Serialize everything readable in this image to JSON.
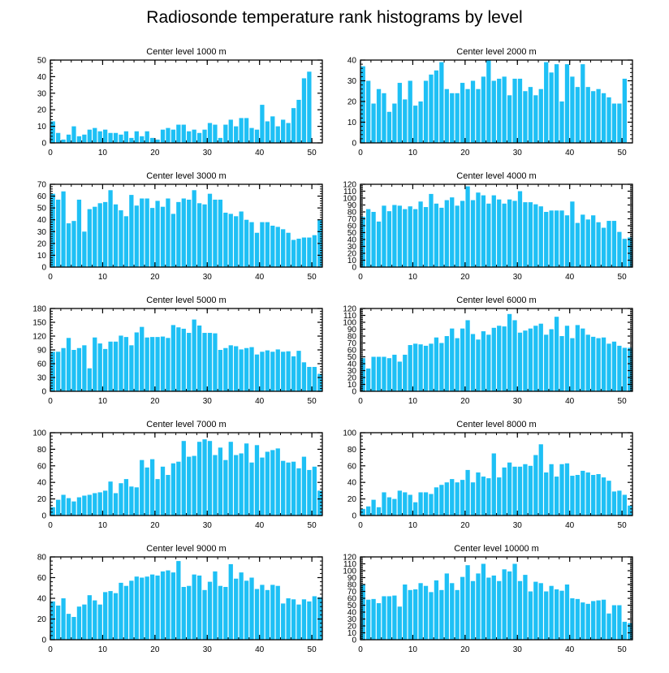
{
  "figure": {
    "title": "Radiosonde temperature rank histograms by level",
    "bar_color": "#1ec0f5",
    "axis_color": "#000000"
  },
  "chart_data": [
    {
      "type": "bar",
      "title": "Center level 1000 m",
      "xlabel": "",
      "ylabel": "",
      "xlim": [
        0,
        52
      ],
      "ylim": [
        0,
        50
      ],
      "xticks": [
        0,
        10,
        20,
        30,
        40,
        50
      ],
      "yticks": [
        0,
        10,
        20,
        30,
        40,
        50
      ],
      "categories": [
        0,
        1,
        2,
        3,
        4,
        5,
        6,
        7,
        8,
        9,
        10,
        11,
        12,
        13,
        14,
        15,
        16,
        17,
        18,
        19,
        20,
        21,
        22,
        23,
        24,
        25,
        26,
        27,
        28,
        29,
        30,
        31,
        32,
        33,
        34,
        35,
        36,
        37,
        38,
        39,
        40,
        41,
        42,
        43,
        44,
        45,
        46,
        47,
        48,
        49,
        50,
        51
      ],
      "values": [
        13,
        6,
        2,
        5,
        10,
        4,
        5,
        8,
        9,
        7,
        8,
        6,
        6,
        5,
        7,
        3,
        7,
        4,
        7,
        3,
        2,
        8,
        9,
        8,
        11,
        11,
        7,
        8,
        6,
        8,
        12,
        11,
        3,
        11,
        14,
        10,
        15,
        15,
        9,
        8,
        23,
        13,
        16,
        10,
        14,
        12,
        21,
        26,
        39,
        43,
        0,
        0
      ]
    },
    {
      "type": "bar",
      "title": "Center level 2000 m",
      "xlabel": "",
      "ylabel": "",
      "xlim": [
        0,
        52
      ],
      "ylim": [
        0,
        40
      ],
      "xticks": [
        0,
        10,
        20,
        30,
        40,
        50
      ],
      "yticks": [
        0,
        10,
        20,
        30,
        40
      ],
      "categories": [
        0,
        1,
        2,
        3,
        4,
        5,
        6,
        7,
        8,
        9,
        10,
        11,
        12,
        13,
        14,
        15,
        16,
        17,
        18,
        19,
        20,
        21,
        22,
        23,
        24,
        25,
        26,
        27,
        28,
        29,
        30,
        31,
        32,
        33,
        34,
        35,
        36,
        37,
        38,
        39,
        40,
        41,
        42,
        43,
        44,
        45,
        46,
        47,
        48,
        49,
        50,
        51
      ],
      "values": [
        37,
        30,
        19,
        26,
        24,
        15,
        19,
        29,
        21,
        30,
        18,
        20,
        30,
        33,
        35,
        39,
        26,
        24,
        24,
        29,
        26,
        30,
        26,
        32,
        40,
        30,
        31,
        32,
        23,
        31,
        31,
        25,
        27,
        23,
        26,
        39,
        34,
        38,
        20,
        38,
        32,
        27,
        38,
        27,
        25,
        26,
        24,
        22,
        19,
        19,
        31,
        0
      ]
    },
    {
      "type": "bar",
      "title": "Center level 3000 m",
      "xlabel": "",
      "ylabel": "",
      "xlim": [
        0,
        52
      ],
      "ylim": [
        0,
        70
      ],
      "xticks": [
        0,
        10,
        20,
        30,
        40,
        50
      ],
      "yticks": [
        0,
        10,
        20,
        30,
        40,
        50,
        60,
        70
      ],
      "categories": [
        0,
        1,
        2,
        3,
        4,
        5,
        6,
        7,
        8,
        9,
        10,
        11,
        12,
        13,
        14,
        15,
        16,
        17,
        18,
        19,
        20,
        21,
        22,
        23,
        24,
        25,
        26,
        27,
        28,
        29,
        30,
        31,
        32,
        33,
        34,
        35,
        36,
        37,
        38,
        39,
        40,
        41,
        42,
        43,
        44,
        45,
        46,
        47,
        48,
        49,
        50,
        51
      ],
      "values": [
        62,
        57,
        64,
        37,
        39,
        57,
        30,
        49,
        51,
        54,
        55,
        65,
        53,
        48,
        43,
        61,
        52,
        58,
        58,
        50,
        56,
        51,
        58,
        45,
        55,
        58,
        57,
        65,
        54,
        53,
        62,
        57,
        57,
        46,
        45,
        43,
        47,
        40,
        38,
        29,
        38,
        38,
        35,
        34,
        32,
        29,
        23,
        24,
        25,
        25,
        27,
        40
      ]
    },
    {
      "type": "bar",
      "title": "Center level 4000 m",
      "xlabel": "",
      "ylabel": "",
      "xlim": [
        0,
        52
      ],
      "ylim": [
        0,
        120
      ],
      "xticks": [
        0,
        10,
        20,
        30,
        40,
        50
      ],
      "yticks": [
        0,
        10,
        20,
        30,
        40,
        50,
        60,
        70,
        80,
        90,
        100,
        110,
        120
      ],
      "categories": [
        0,
        1,
        2,
        3,
        4,
        5,
        6,
        7,
        8,
        9,
        10,
        11,
        12,
        13,
        14,
        15,
        16,
        17,
        18,
        19,
        20,
        21,
        22,
        23,
        24,
        25,
        26,
        27,
        28,
        29,
        30,
        31,
        32,
        33,
        34,
        35,
        36,
        37,
        38,
        39,
        40,
        41,
        42,
        43,
        44,
        45,
        46,
        47,
        48,
        49,
        50,
        51
      ],
      "values": [
        73,
        84,
        80,
        66,
        89,
        81,
        90,
        89,
        84,
        88,
        84,
        95,
        87,
        106,
        92,
        86,
        97,
        101,
        89,
        96,
        117,
        97,
        108,
        104,
        92,
        104,
        98,
        92,
        98,
        96,
        110,
        94,
        94,
        91,
        88,
        80,
        82,
        82,
        82,
        75,
        95,
        64,
        76,
        69,
        75,
        65,
        57,
        67,
        67,
        51,
        41,
        43
      ]
    },
    {
      "type": "bar",
      "title": "Center level 5000 m",
      "xlabel": "",
      "ylabel": "",
      "xlim": [
        0,
        52
      ],
      "ylim": [
        0,
        180
      ],
      "xticks": [
        0,
        10,
        20,
        30,
        40,
        50
      ],
      "yticks": [
        0,
        30,
        60,
        90,
        120,
        150,
        180
      ],
      "categories": [
        0,
        1,
        2,
        3,
        4,
        5,
        6,
        7,
        8,
        9,
        10,
        11,
        12,
        13,
        14,
        15,
        16,
        17,
        18,
        19,
        20,
        21,
        22,
        23,
        24,
        25,
        26,
        27,
        28,
        29,
        30,
        31,
        32,
        33,
        34,
        35,
        36,
        37,
        38,
        39,
        40,
        41,
        42,
        43,
        44,
        45,
        46,
        47,
        48,
        49,
        50,
        51
      ],
      "values": [
        86,
        86,
        94,
        116,
        90,
        94,
        100,
        50,
        117,
        104,
        92,
        108,
        108,
        121,
        118,
        100,
        128,
        140,
        117,
        118,
        118,
        119,
        116,
        144,
        139,
        136,
        127,
        156,
        143,
        127,
        127,
        126,
        90,
        94,
        100,
        98,
        91,
        94,
        96,
        80,
        86,
        89,
        86,
        91,
        86,
        87,
        76,
        88,
        63,
        53,
        53,
        38
      ]
    },
    {
      "type": "bar",
      "title": "Center level 6000 m",
      "xlabel": "",
      "ylabel": "",
      "xlim": [
        0,
        52
      ],
      "ylim": [
        0,
        120
      ],
      "xticks": [
        0,
        10,
        20,
        30,
        40,
        50
      ],
      "yticks": [
        0,
        10,
        20,
        30,
        40,
        50,
        60,
        70,
        80,
        90,
        100,
        110,
        120
      ],
      "categories": [
        0,
        1,
        2,
        3,
        4,
        5,
        6,
        7,
        8,
        9,
        10,
        11,
        12,
        13,
        14,
        15,
        16,
        17,
        18,
        19,
        20,
        21,
        22,
        23,
        24,
        25,
        26,
        27,
        28,
        29,
        30,
        31,
        32,
        33,
        34,
        35,
        36,
        37,
        38,
        39,
        40,
        41,
        42,
        43,
        44,
        45,
        46,
        47,
        48,
        49,
        50,
        51
      ],
      "values": [
        48,
        33,
        50,
        50,
        50,
        48,
        53,
        43,
        53,
        67,
        69,
        68,
        66,
        69,
        78,
        70,
        80,
        91,
        77,
        91,
        103,
        83,
        75,
        87,
        82,
        92,
        95,
        94,
        112,
        103,
        85,
        88,
        91,
        95,
        98,
        82,
        90,
        108,
        80,
        95,
        77,
        96,
        91,
        82,
        79,
        77,
        78,
        69,
        72,
        66,
        63,
        63
      ]
    },
    {
      "type": "bar",
      "title": "Center level 7000 m",
      "xlabel": "",
      "ylabel": "",
      "xlim": [
        0,
        52
      ],
      "ylim": [
        0,
        100
      ],
      "xticks": [
        0,
        10,
        20,
        30,
        40,
        50
      ],
      "yticks": [
        0,
        20,
        40,
        60,
        80,
        100
      ],
      "categories": [
        0,
        1,
        2,
        3,
        4,
        5,
        6,
        7,
        8,
        9,
        10,
        11,
        12,
        13,
        14,
        15,
        16,
        17,
        18,
        19,
        20,
        21,
        22,
        23,
        24,
        25,
        26,
        27,
        28,
        29,
        30,
        31,
        32,
        33,
        34,
        35,
        36,
        37,
        38,
        39,
        40,
        41,
        42,
        43,
        44,
        45,
        46,
        47,
        48,
        49,
        50,
        51
      ],
      "values": [
        10,
        19,
        25,
        21,
        17,
        22,
        24,
        25,
        27,
        28,
        30,
        41,
        27,
        39,
        44,
        35,
        34,
        67,
        58,
        68,
        44,
        59,
        49,
        63,
        65,
        90,
        71,
        72,
        89,
        92,
        90,
        73,
        82,
        67,
        89,
        73,
        75,
        87,
        64,
        85,
        70,
        77,
        79,
        81,
        66,
        64,
        65,
        57,
        71,
        55,
        59,
        30
      ]
    },
    {
      "type": "bar",
      "title": "Center level 8000 m",
      "xlabel": "",
      "ylabel": "",
      "xlim": [
        0,
        52
      ],
      "ylim": [
        0,
        100
      ],
      "xticks": [
        0,
        10,
        20,
        30,
        40,
        50
      ],
      "yticks": [
        0,
        20,
        40,
        60,
        80,
        100
      ],
      "categories": [
        0,
        1,
        2,
        3,
        4,
        5,
        6,
        7,
        8,
        9,
        10,
        11,
        12,
        13,
        14,
        15,
        16,
        17,
        18,
        19,
        20,
        21,
        22,
        23,
        24,
        25,
        26,
        27,
        28,
        29,
        30,
        31,
        32,
        33,
        34,
        35,
        36,
        37,
        38,
        39,
        40,
        41,
        42,
        43,
        44,
        45,
        46,
        47,
        48,
        49,
        50,
        51
      ],
      "values": [
        8,
        11,
        19,
        10,
        28,
        22,
        20,
        30,
        28,
        25,
        16,
        28,
        28,
        26,
        34,
        37,
        40,
        44,
        40,
        43,
        55,
        40,
        52,
        47,
        45,
        75,
        46,
        58,
        64,
        59,
        59,
        62,
        60,
        73,
        86,
        52,
        62,
        47,
        62,
        63,
        48,
        49,
        54,
        52,
        49,
        50,
        46,
        42,
        29,
        30,
        25,
        12
      ]
    },
    {
      "type": "bar",
      "title": "Center level 9000 m",
      "xlabel": "",
      "ylabel": "",
      "xlim": [
        0,
        52
      ],
      "ylim": [
        0,
        80
      ],
      "xticks": [
        0,
        10,
        20,
        30,
        40,
        50
      ],
      "yticks": [
        0,
        20,
        40,
        60,
        80
      ],
      "categories": [
        0,
        1,
        2,
        3,
        4,
        5,
        6,
        7,
        8,
        9,
        10,
        11,
        12,
        13,
        14,
        15,
        16,
        17,
        18,
        19,
        20,
        21,
        22,
        23,
        24,
        25,
        26,
        27,
        28,
        29,
        30,
        31,
        32,
        33,
        34,
        35,
        36,
        37,
        38,
        39,
        40,
        41,
        42,
        43,
        44,
        45,
        46,
        47,
        48,
        49,
        50,
        51
      ],
      "values": [
        37,
        33,
        40,
        25,
        22,
        32,
        34,
        43,
        38,
        34,
        46,
        47,
        45,
        55,
        52,
        57,
        61,
        60,
        61,
        63,
        62,
        66,
        67,
        65,
        76,
        51,
        52,
        63,
        62,
        48,
        56,
        66,
        52,
        51,
        73,
        59,
        65,
        57,
        60,
        49,
        53,
        48,
        53,
        52,
        35,
        40,
        39,
        34,
        39,
        37,
        42,
        41
      ]
    },
    {
      "type": "bar",
      "title": "Center level 10000 m",
      "xlabel": "",
      "ylabel": "",
      "xlim": [
        0,
        52
      ],
      "ylim": [
        0,
        120
      ],
      "xticks": [
        0,
        10,
        20,
        30,
        40,
        50
      ],
      "yticks": [
        0,
        10,
        20,
        30,
        40,
        50,
        60,
        70,
        80,
        90,
        100,
        110,
        120
      ],
      "categories": [
        0,
        1,
        2,
        3,
        4,
        5,
        6,
        7,
        8,
        9,
        10,
        11,
        12,
        13,
        14,
        15,
        16,
        17,
        18,
        19,
        20,
        21,
        22,
        23,
        24,
        25,
        26,
        27,
        28,
        29,
        30,
        31,
        32,
        33,
        34,
        35,
        36,
        37,
        38,
        39,
        40,
        41,
        42,
        43,
        44,
        45,
        46,
        47,
        48,
        49,
        50,
        51
      ],
      "values": [
        80,
        58,
        59,
        53,
        63,
        63,
        64,
        48,
        80,
        72,
        73,
        82,
        78,
        69,
        86,
        72,
        96,
        82,
        72,
        91,
        108,
        85,
        96,
        110,
        90,
        93,
        85,
        102,
        99,
        110,
        85,
        94,
        70,
        84,
        82,
        70,
        78,
        73,
        71,
        80,
        60,
        59,
        54,
        52,
        56,
        57,
        58,
        38,
        50,
        50,
        26,
        24
      ]
    }
  ]
}
